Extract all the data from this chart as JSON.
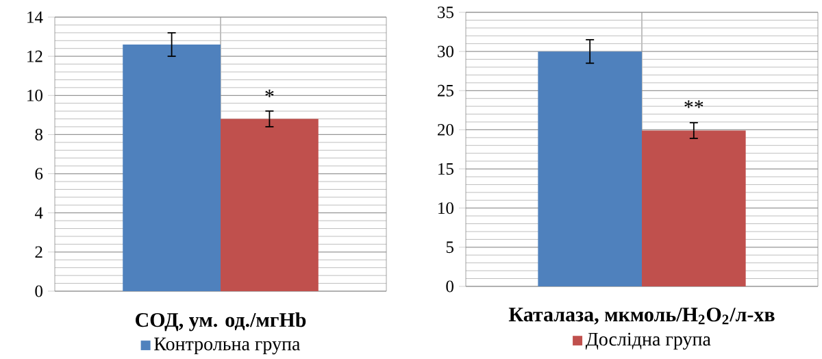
{
  "chart_data": [
    {
      "type": "bar",
      "categories": [
        "**СОД, ум. од./мгHb**"
      ],
      "series": [
        {
          "name": "Контрольна група",
          "color": "#4f81bd",
          "values": [
            12.6
          ],
          "errors": [
            0.6
          ]
        },
        {
          "color": "#c0504d",
          "values": [
            8.8
          ],
          "errors": [
            0.4
          ]
        }
      ],
      "ylim": [
        0,
        14
      ],
      "yticks": [
        0,
        2,
        4,
        6,
        8,
        10,
        12,
        14
      ],
      "grid": true,
      "legend": "bottom",
      "annotations": [
        {
          "text": "*",
          "x": "**СОД, ум. од./мгHb**",
          "y": 9.6
        }
      ]
    },
    {
      "type": "bar",
      "categories": [
        "**Каталаза,  мкмоль/H$_{2}$O$_{2}$/л-хв**"
      ],
      "series": [
        {
          "color": "#4f81bd",
          "values": [
            30
          ],
          "errors": [
            1.5
          ]
        },
        {
          "name": "Дослідна група",
          "color": "#c0504d",
          "values": [
            19.9
          ],
          "errors": [
            1.0
          ]
        }
      ],
      "ylim": [
        0,
        35
      ],
      "yticks": [
        0,
        5,
        10,
        15,
        20,
        25,
        30,
        35
      ],
      "grid": true,
      "legend": "bottom",
      "annotations": [
        {
          "text": "**",
          "x": "**Каталаза,  мкмоль/H$_{2}$O$_{2}$/л-хв**",
          "y": 22
        }
      ]
    }
  ]
}
